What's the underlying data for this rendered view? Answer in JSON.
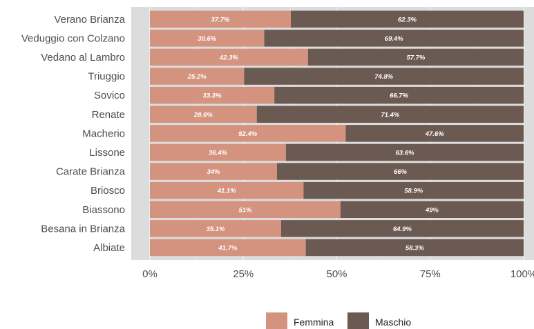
{
  "chart_data": {
    "type": "bar",
    "orientation": "horizontal",
    "stacked": true,
    "categories": [
      "Verano Brianza",
      "Veduggio con Colzano",
      "Vedano al Lambro",
      "Triuggio",
      "Sovico",
      "Renate",
      "Macherio",
      "Lissone",
      "Carate Brianza",
      "Briosco",
      "Biassono",
      "Besana in Brianza",
      "Albiate"
    ],
    "series": [
      {
        "name": "Femmina",
        "color": "#d4937f",
        "values": [
          37.7,
          30.6,
          42.3,
          25.2,
          33.3,
          28.6,
          52.4,
          36.4,
          34,
          41.1,
          51,
          35.1,
          41.7
        ],
        "labels": [
          "37.7%",
          "30.6%",
          "42.3%",
          "25.2%",
          "33.3%",
          "28.6%",
          "52.4%",
          "36.4%",
          "34%",
          "41.1%",
          "51%",
          "35.1%",
          "41.7%"
        ]
      },
      {
        "name": "Maschio",
        "color": "#6b5a52",
        "values": [
          62.3,
          69.4,
          57.7,
          74.8,
          66.7,
          71.4,
          47.6,
          63.6,
          66,
          58.9,
          49,
          64.9,
          58.3
        ],
        "labels": [
          "62.3%",
          "69.4%",
          "57.7%",
          "74.8%",
          "66.7%",
          "71.4%",
          "47.6%",
          "63.6%",
          "66%",
          "58.9%",
          "49%",
          "64.9%",
          "58.3%"
        ]
      }
    ],
    "xlim": [
      0,
      100
    ],
    "x_ticks": [
      0,
      25,
      50,
      75,
      100
    ],
    "x_tick_labels": [
      "0%",
      "25%",
      "50%",
      "75%",
      "100%"
    ],
    "title": "",
    "xlabel": "",
    "ylabel": "",
    "legend_position": "bottom",
    "panel_background": "#dcdcdc",
    "grid": true
  }
}
